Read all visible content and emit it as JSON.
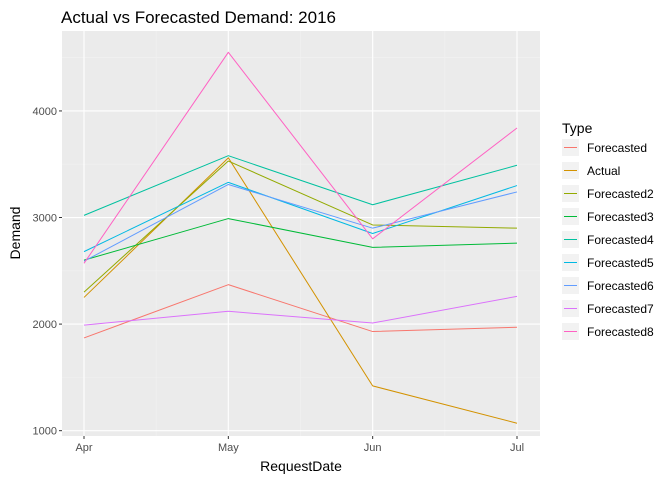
{
  "chart_data": {
    "type": "line",
    "title": "Actual vs Forecasted Demand: 2016",
    "xlabel": "RequestDate",
    "ylabel": "Demand",
    "categories": [
      "Apr",
      "May",
      "Jun",
      "Jul"
    ],
    "ylim": [
      950,
      4750
    ],
    "yticks": [
      1000,
      2000,
      3000,
      4000
    ],
    "grid": true,
    "legend": {
      "title": "Type",
      "placement": "right"
    },
    "series": [
      {
        "name": "Forecasted",
        "color": "#F8766D",
        "values": [
          1870,
          2370,
          1930,
          1970
        ]
      },
      {
        "name": "Actual",
        "color": "#D39200",
        "values": [
          2250,
          3560,
          1420,
          1070
        ]
      },
      {
        "name": "Forecasted2",
        "color": "#93AA00",
        "values": [
          2300,
          3530,
          2930,
          2900
        ]
      },
      {
        "name": "Forecasted3",
        "color": "#00BA38",
        "values": [
          2600,
          2990,
          2720,
          2760
        ]
      },
      {
        "name": "Forecasted4",
        "color": "#00C19F",
        "values": [
          3020,
          3580,
          3120,
          3490
        ]
      },
      {
        "name": "Forecasted5",
        "color": "#00B9E3",
        "values": [
          2680,
          3330,
          2850,
          3300
        ]
      },
      {
        "name": "Forecasted6",
        "color": "#619CFF",
        "values": [
          2590,
          3310,
          2900,
          3240
        ]
      },
      {
        "name": "Forecasted7",
        "color": "#DB72FB",
        "values": [
          1990,
          2120,
          2010,
          2260
        ]
      },
      {
        "name": "Forecasted8",
        "color": "#FF61C3",
        "values": [
          2570,
          4550,
          2800,
          3840
        ]
      }
    ]
  }
}
